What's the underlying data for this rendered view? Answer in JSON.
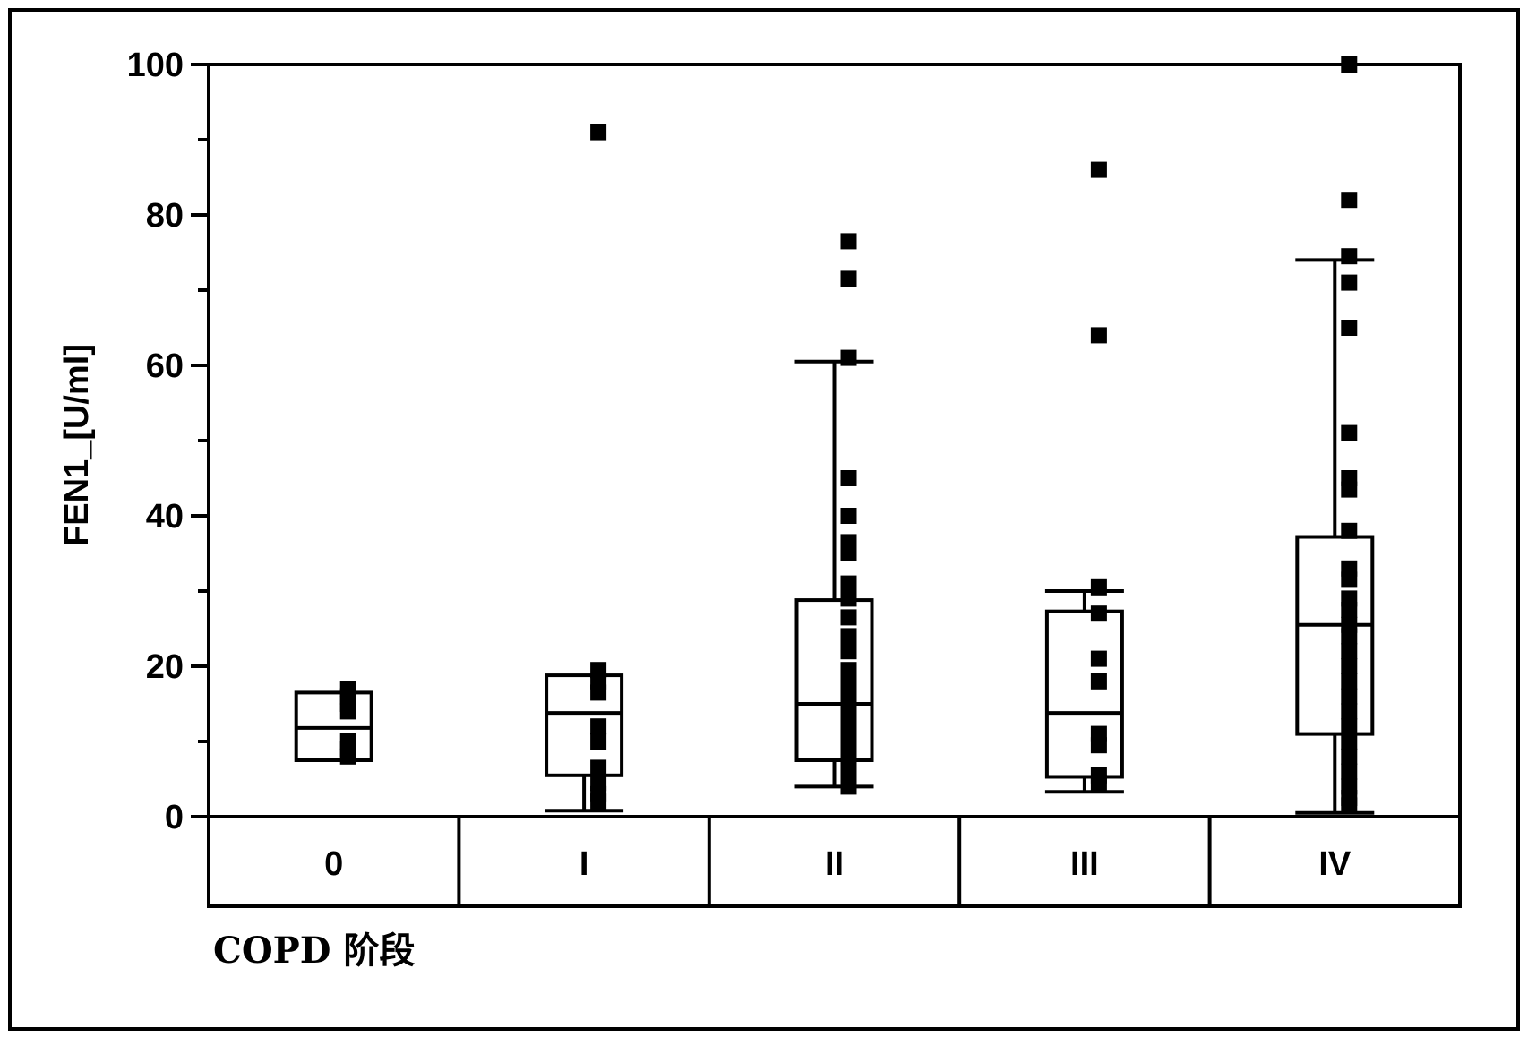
{
  "chart_data": {
    "type": "box",
    "title": "",
    "ylabel": "FEN1_[U/ml]",
    "xlabel": "COPD 阶段",
    "ylim": [
      0,
      100
    ],
    "yticks": [
      0,
      20,
      40,
      60,
      80,
      100
    ],
    "categories": [
      "0",
      "I",
      "II",
      "III",
      "IV"
    ],
    "boxes": [
      {
        "category": "0",
        "whisker_low": 7.5,
        "q1": 7.5,
        "median": 11.8,
        "q3": 16.5,
        "whisker_high": 16.5
      },
      {
        "category": "I",
        "whisker_low": 0.8,
        "q1": 5.5,
        "median": 13.8,
        "q3": 18.8,
        "whisker_high": 18.8
      },
      {
        "category": "II",
        "whisker_low": 4.0,
        "q1": 7.5,
        "median": 15.0,
        "q3": 28.8,
        "whisker_high": 60.5
      },
      {
        "category": "III",
        "whisker_low": 3.3,
        "q1": 5.3,
        "median": 13.8,
        "q3": 27.3,
        "whisker_high": 30.0
      },
      {
        "category": "IV",
        "whisker_low": 0.5,
        "q1": 11.0,
        "median": 25.5,
        "q3": 37.2,
        "whisker_high": 74.0
      }
    ],
    "points": [
      {
        "category": "0",
        "values": [
          8,
          9,
          10,
          14,
          15,
          16,
          17
        ]
      },
      {
        "category": "I",
        "values": [
          91,
          19.5,
          18,
          16.5,
          12,
          10,
          6.5,
          4.5,
          3,
          2
        ]
      },
      {
        "category": "II",
        "values": [
          76.5,
          71.5,
          61,
          45,
          40,
          36.5,
          35,
          31,
          29,
          26.5,
          24,
          22,
          19.5,
          18,
          16,
          14.5,
          13,
          11.5,
          10,
          8.5,
          7,
          5,
          4
        ]
      },
      {
        "category": "III",
        "values": [
          86,
          64,
          30.5,
          27,
          21,
          18,
          11,
          9.5,
          5.5,
          4.5
        ]
      },
      {
        "category": "IV",
        "values": [
          100,
          82,
          74.5,
          71,
          65,
          51,
          45,
          43.5,
          38,
          33,
          31.5,
          29,
          27.5,
          25.5,
          24,
          22,
          20,
          18,
          16,
          14,
          12,
          10,
          8,
          6,
          4,
          2.5,
          1.5
        ]
      }
    ],
    "grid": false,
    "legend": "none"
  }
}
